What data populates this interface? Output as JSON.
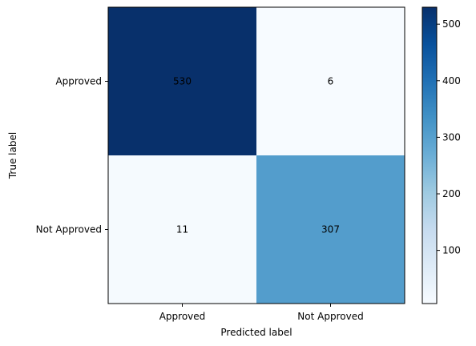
{
  "chart_data": {
    "type": "heatmap",
    "title": "",
    "xlabel": "Predicted label",
    "ylabel": "True label",
    "x_categories": [
      "Approved",
      "Not Approved"
    ],
    "y_categories": [
      "Approved",
      "Not Approved"
    ],
    "matrix": [
      [
        530,
        6
      ],
      [
        11,
        307
      ]
    ],
    "colormap": "Blues",
    "colors": {
      "low": "#f7fbff",
      "high": "#08306b",
      "text_on_light": "#08306b",
      "text_on_dark": "#f7fbff"
    },
    "colorbar": {
      "range": [
        6,
        530
      ],
      "ticks": [
        100,
        200,
        300,
        400,
        500
      ]
    },
    "grid": false,
    "legend": "right"
  }
}
